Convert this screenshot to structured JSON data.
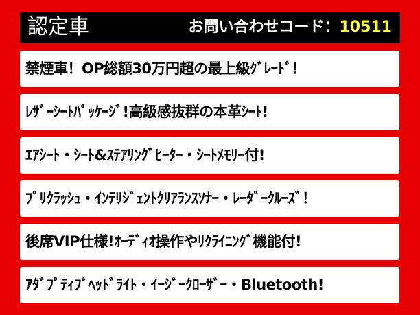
{
  "header": {
    "title": "認定車",
    "code_label": "お問い合わせコード：",
    "code_value": "10511"
  },
  "colors": {
    "background": "#e60000",
    "header_bg": "#000000",
    "code_value": "#ffff33"
  },
  "features": [
    "禁煙車！OP総額30万円超の最上級ｸﾞﾚｰﾄﾞ！",
    "ﾚｻﾞｰｼｰﾄﾊﾟｯｹｰｼﾞ!高級感抜群の本革ｼｰﾄ!",
    "ｴｱｼｰﾄ・ｼｰﾄ&ｽﾃｱﾘﾝｸﾞﾋｰﾀｰ・ｼｰﾄﾒﾓﾘｰ付!",
    "ﾌﾟﾘｸﾗｯｼｭ・ｲﾝﾃﾘｼﾞｪﾝﾄｸﾘｱﾗﾝｽｿﾅｰ・ﾚｰﾀﾞｰｸﾙｰｽﾞ！",
    "後席VIP仕様!ｵｰﾃﾞｨｵ操作やﾘｸﾗｲﾆﾝｸﾞ機能付!",
    "ｱﾀﾞﾌﾟﾃｨﾌﾞﾍｯﾄﾞﾗｲﾄ・ｲｰｼﾞｰｸﾛｰｻﾞｰ・Bluetooth!"
  ]
}
